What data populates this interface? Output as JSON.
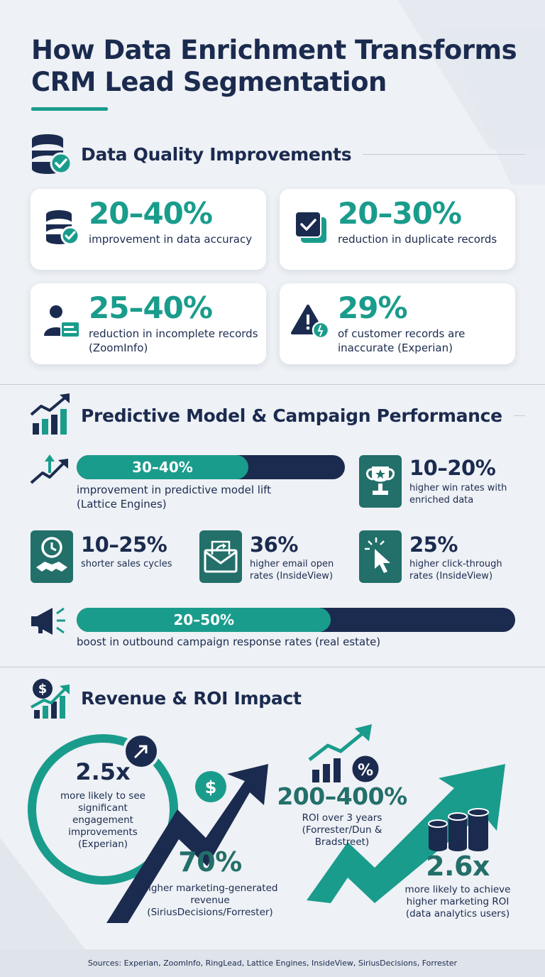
{
  "title": "How Data Enrichment Transforms CRM Lead Segmentation",
  "colors": {
    "teal": "#1a9c8c",
    "dark_teal": "#236f6a",
    "navy": "#1b2b4f",
    "background": "#eef1f5"
  },
  "sections": {
    "quality": {
      "heading": "Data Quality Improvements",
      "icon": "database-check-icon",
      "cards": [
        {
          "value": "20–40%",
          "desc": "improvement in data accuracy",
          "icon": "database-check-icon"
        },
        {
          "value": "20–30%",
          "desc": "reduction in duplicate records",
          "icon": "duplicate-check-icon"
        },
        {
          "value": "25–40%",
          "desc": "reduction in incomplete records (ZoomInfo)",
          "icon": "user-card-icon"
        },
        {
          "value": "29%",
          "desc": "of customer records are inaccurate (Experian)",
          "icon": "warning-icon"
        }
      ]
    },
    "performance": {
      "heading": "Predictive Model & Campaign Performance",
      "icon": "growth-chart-icon",
      "bar1": {
        "value": "30–40%",
        "fill_fraction": 0.64,
        "desc": "improvement in predictive model lift (Lattice Engines)",
        "icon": "trend-up-icon"
      },
      "win": {
        "value": "10–20%",
        "desc": "higher win rates with enriched data",
        "icon": "trophy-icon"
      },
      "cycles": {
        "value": "10–25%",
        "desc": "shorter sales cycles",
        "icon": "clock-handshake-icon"
      },
      "open": {
        "value": "36%",
        "desc": "higher email open rates (InsideView)",
        "icon": "envelope-icon"
      },
      "ctr": {
        "value": "25%",
        "desc": "higher click-through rates (InsideView)",
        "icon": "cursor-click-icon"
      },
      "bar2": {
        "value": "20–50%",
        "fill_fraction": 0.58,
        "desc": "boost in outbound campaign response rates (real estate)",
        "icon": "megaphone-icon"
      }
    },
    "revenue": {
      "heading": "Revenue & ROI Impact",
      "icon": "dollar-growth-icon",
      "engagement": {
        "value": "2.5x",
        "desc": "more likely to see significant engagement improvements (Experian)"
      },
      "marketing_revenue": {
        "value": "70%",
        "desc": "higher marketing-generated revenue (SiriusDecisions/Forrester)"
      },
      "roi": {
        "value": "200–400%",
        "desc": "ROI over 3 years (Forrester/Dun & Bradstreet)"
      },
      "analytics": {
        "value": "2.6x",
        "desc": "more likely to achieve higher marketing ROI (data analytics users)"
      }
    }
  },
  "footer": "Sources: Experian, ZoomInfo, RingLead, Lattice Engines, InsideView, SiriusDecisions, Forrester"
}
